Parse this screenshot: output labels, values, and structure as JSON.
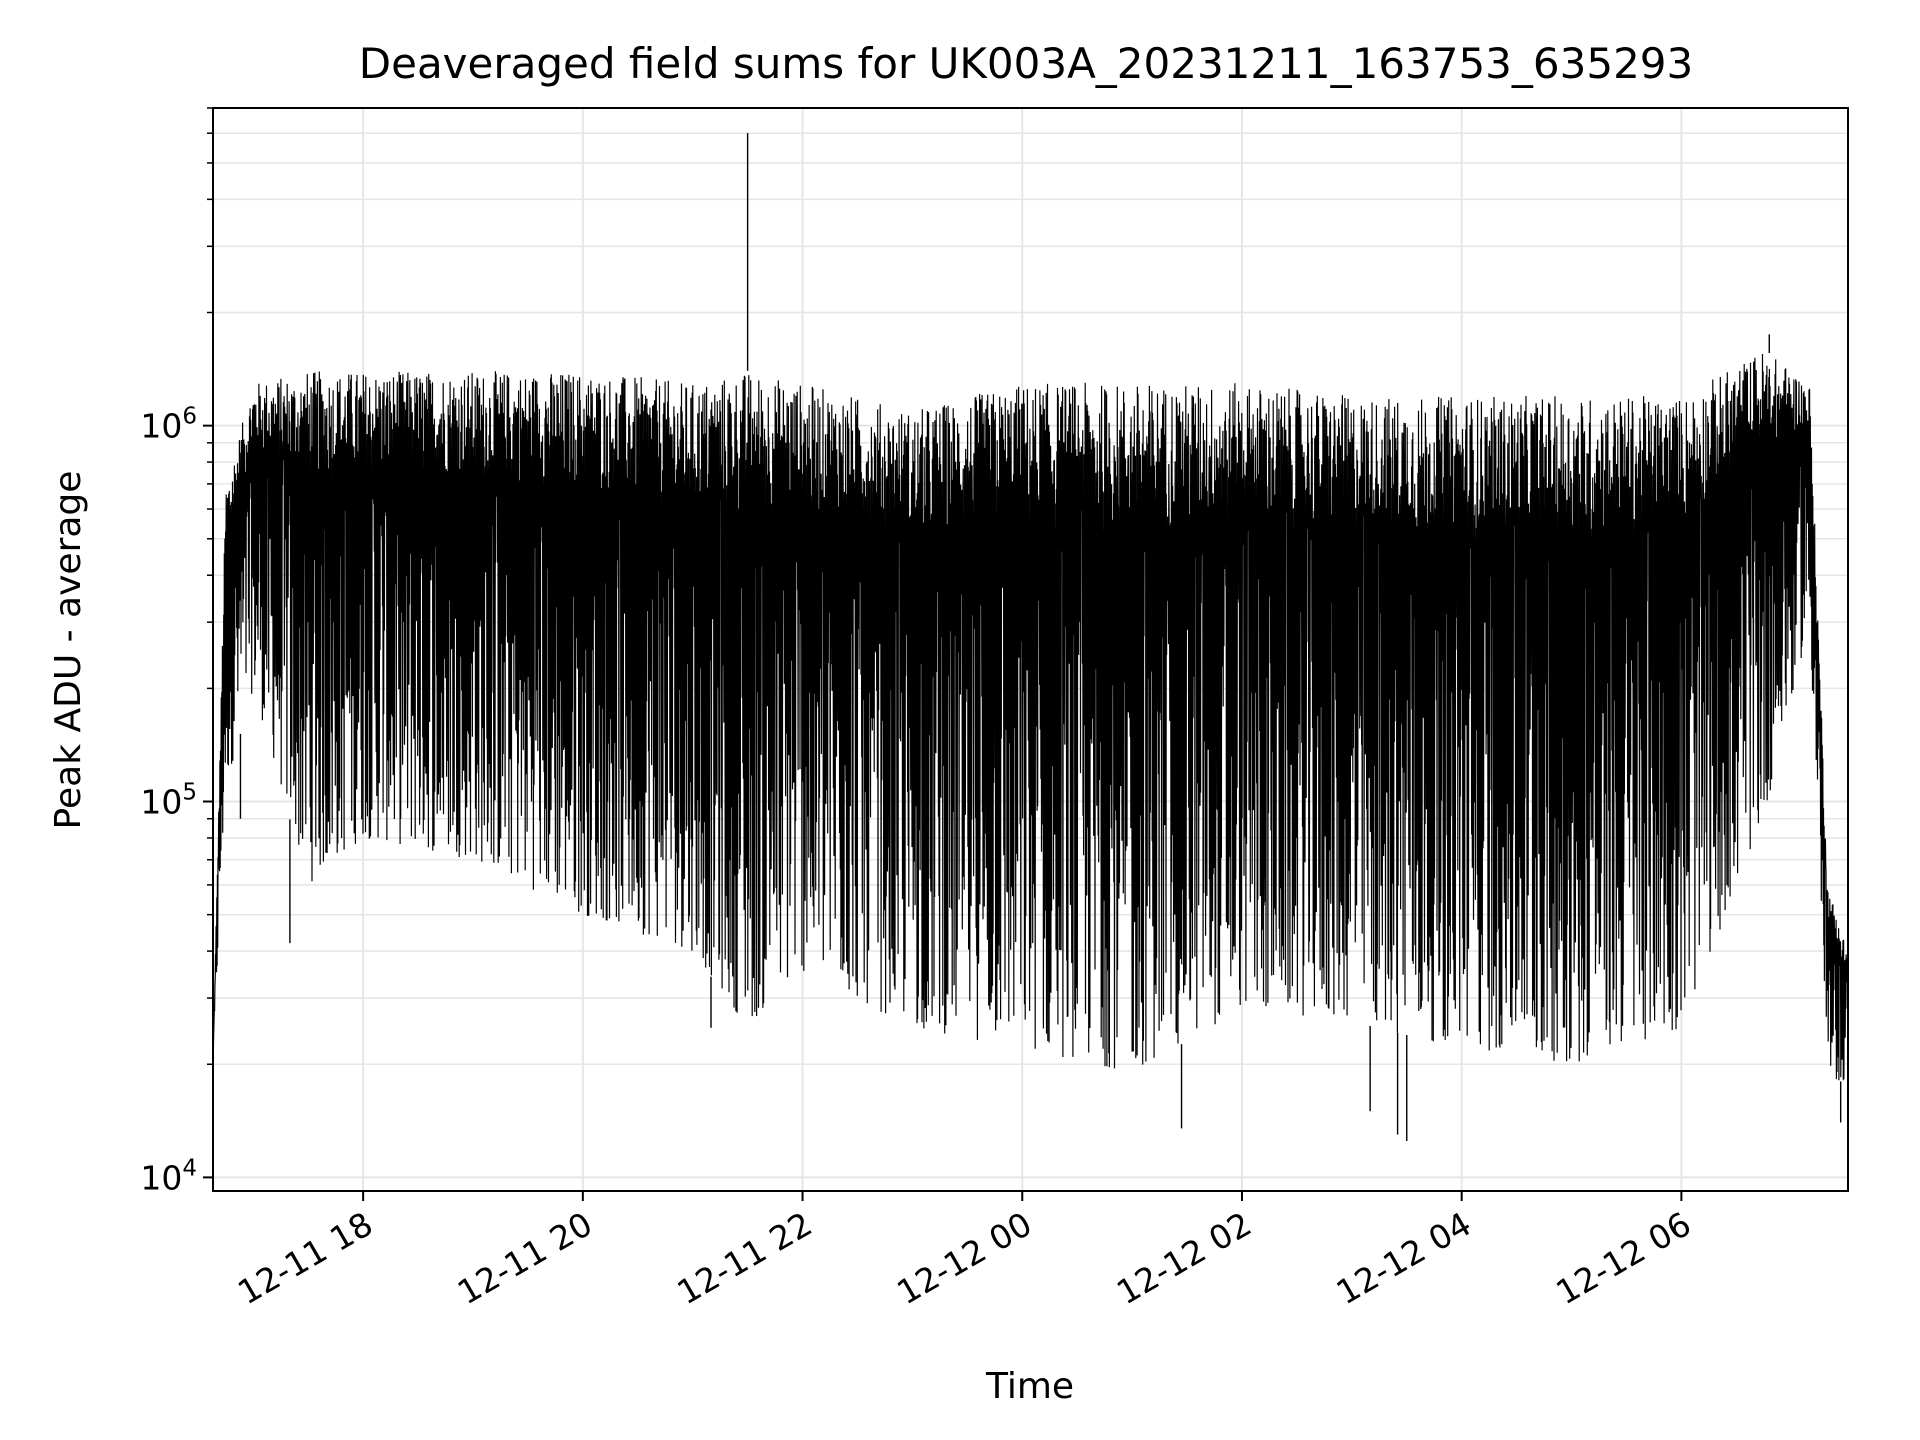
{
  "chart_data": {
    "type": "line",
    "title": "Deaveraged field sums for UK003A_20231211_163753_635293",
    "xlabel": "Time",
    "ylabel": "Peak ADU - average",
    "yscale": "log",
    "ylim": [
      9200,
      7000000
    ],
    "xlim": [
      "2023-12-11 16:38",
      "2023-12-12 07:31"
    ],
    "grid": true,
    "line_color": "#000000",
    "grid_color": "#e6e6e6",
    "x_ticks": [
      {
        "value": "2023-12-11 18:00",
        "label": "12-11 18"
      },
      {
        "value": "2023-12-11 20:00",
        "label": "12-11 20"
      },
      {
        "value": "2023-12-11 22:00",
        "label": "12-11 22"
      },
      {
        "value": "2023-12-12 00:00",
        "label": "12-12 00"
      },
      {
        "value": "2023-12-12 02:00",
        "label": "12-12 02"
      },
      {
        "value": "2023-12-12 04:00",
        "label": "12-12 04"
      },
      {
        "value": "2023-12-12 06:00",
        "label": "12-12 06"
      }
    ],
    "y_ticks": [
      {
        "value": 10000,
        "base": "10",
        "exp": "4"
      },
      {
        "value": 100000,
        "base": "10",
        "exp": "5"
      },
      {
        "value": 1000000,
        "base": "10",
        "exp": "6"
      }
    ],
    "series": [
      {
        "envelope": [
          {
            "x": "2023-12-11 16:38",
            "low": 20000,
            "high": 20000
          },
          {
            "x": "2023-12-11 16:45",
            "low": 110000,
            "high": 700000
          },
          {
            "x": "2023-12-11 17:00",
            "low": 200000,
            "high": 1300000
          },
          {
            "x": "2023-12-11 17:30",
            "low": 60000,
            "high": 1400000
          },
          {
            "x": "2023-12-11 18:00",
            "low": 80000,
            "high": 1400000
          },
          {
            "x": "2023-12-11 19:00",
            "low": 70000,
            "high": 1400000
          },
          {
            "x": "2023-12-11 20:00",
            "low": 50000,
            "high": 1400000
          },
          {
            "x": "2023-12-11 21:00",
            "low": 40000,
            "high": 1300000
          },
          {
            "x": "2023-12-11 21:30",
            "low": 25000,
            "high": 1400000
          },
          {
            "x": "2023-12-11 22:00",
            "low": 35000,
            "high": 1300000
          },
          {
            "x": "2023-12-11 23:00",
            "low": 25000,
            "high": 1100000
          },
          {
            "x": "2023-12-12 00:00",
            "low": 22000,
            "high": 1300000
          },
          {
            "x": "2023-12-12 01:00",
            "low": 19000,
            "high": 1300000
          },
          {
            "x": "2023-12-12 02:00",
            "low": 28000,
            "high": 1300000
          },
          {
            "x": "2023-12-12 03:00",
            "low": 26000,
            "high": 1200000
          },
          {
            "x": "2023-12-12 04:00",
            "low": 22000,
            "high": 1200000
          },
          {
            "x": "2023-12-12 05:00",
            "low": 20000,
            "high": 1200000
          },
          {
            "x": "2023-12-12 06:00",
            "low": 25000,
            "high": 1200000
          },
          {
            "x": "2023-12-12 06:45",
            "low": 90000,
            "high": 1600000
          },
          {
            "x": "2023-12-12 07:10",
            "low": 300000,
            "high": 1300000
          },
          {
            "x": "2023-12-12 07:20",
            "low": 18000,
            "high": 60000
          },
          {
            "x": "2023-12-12 07:31",
            "low": 18000,
            "high": 40000
          }
        ],
        "spikes": [
          {
            "x": "2023-12-11 21:30",
            "value": 6000000
          },
          {
            "x": "2023-12-11 16:53",
            "value": 90000
          },
          {
            "x": "2023-12-11 17:20",
            "value": 42000
          },
          {
            "x": "2023-12-11 21:10",
            "value": 25000
          },
          {
            "x": "2023-12-12 01:27",
            "value": 13500
          },
          {
            "x": "2023-12-12 03:10",
            "value": 15000
          },
          {
            "x": "2023-12-12 03:25",
            "value": 13000
          },
          {
            "x": "2023-12-12 03:30",
            "value": 12500
          },
          {
            "x": "2023-12-12 06:48",
            "value": 1750000
          },
          {
            "x": "2023-12-12 07:27",
            "value": 14000
          }
        ]
      }
    ]
  }
}
